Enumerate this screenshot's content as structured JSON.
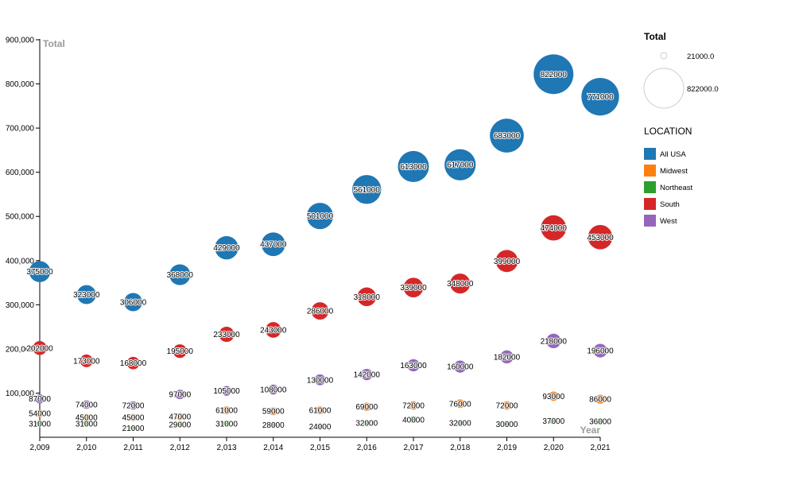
{
  "chart_data": {
    "type": "scatter",
    "subtype": "bubble",
    "ylabel": "Total",
    "xlabel": "Year",
    "x": [
      2009,
      2010,
      2011,
      2012,
      2013,
      2014,
      2015,
      2016,
      2017,
      2018,
      2019,
      2020,
      2021
    ],
    "x_tick_labels": [
      "2,009",
      "2,010",
      "2,011",
      "2,012",
      "2,013",
      "2,014",
      "2,015",
      "2,016",
      "2,017",
      "2,018",
      "2,019",
      "2,020",
      "2,021"
    ],
    "y_ticks": [
      100000,
      200000,
      300000,
      400000,
      500000,
      600000,
      700000,
      800000,
      900000
    ],
    "y_tick_labels": [
      "100,000",
      "200,000",
      "300,000",
      "400,000",
      "500,000",
      "600,000",
      "700,000",
      "800,000",
      "900,000"
    ],
    "ylim": [
      0,
      900000
    ],
    "grid": false,
    "series": [
      {
        "name": "All USA",
        "color": "#1f77b4",
        "values": [
          375000,
          323000,
          306000,
          368000,
          429000,
          437000,
          501000,
          561000,
          613000,
          617000,
          683000,
          822000,
          771000
        ]
      },
      {
        "name": "Midwest",
        "color": "#ff7f0e",
        "values": [
          54000,
          45000,
          45000,
          47000,
          61000,
          59000,
          61000,
          69000,
          72000,
          76000,
          72000,
          93000,
          86000
        ]
      },
      {
        "name": "Northeast",
        "color": "#2ca02c",
        "values": [
          31000,
          31000,
          21000,
          29000,
          31000,
          28000,
          24000,
          32000,
          40000,
          32000,
          30000,
          37000,
          36000
        ]
      },
      {
        "name": "South",
        "color": "#d62728",
        "values": [
          202000,
          173000,
          168000,
          195000,
          233000,
          243000,
          286000,
          318000,
          339000,
          348000,
          399000,
          474000,
          453000
        ]
      },
      {
        "name": "West",
        "color": "#9467bd",
        "values": [
          87000,
          74000,
          72000,
          97000,
          105000,
          108000,
          130000,
          142000,
          163000,
          160000,
          182000,
          218000,
          196000
        ]
      }
    ],
    "size_legend": {
      "title": "Total",
      "min_label": "21000.0",
      "max_label": "822000.0",
      "min_value": 21000,
      "max_value": 822000
    },
    "color_legend": {
      "title": "LOCATION"
    },
    "legend_position": "right"
  }
}
